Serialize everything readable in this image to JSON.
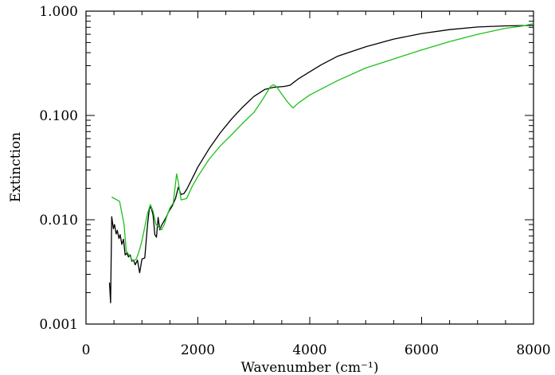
{
  "chart_data": {
    "type": "line",
    "title": "",
    "xlabel": "Wavenumber (cm⁻¹)",
    "ylabel": "Extinction",
    "xlim": [
      0,
      8000
    ],
    "ylim": [
      0.001,
      1.0
    ],
    "yscale": "log",
    "grid": false,
    "x_ticks": [
      0,
      2000,
      4000,
      6000,
      8000
    ],
    "x_tick_labels": [
      "0",
      "2000",
      "4000",
      "6000",
      "8000"
    ],
    "y_ticks": [
      0.001,
      0.01,
      0.1,
      1.0
    ],
    "y_tick_labels": [
      "0.001",
      "0.010",
      "0.100",
      "1.000"
    ],
    "series": [
      {
        "color": "#000000",
        "x": [
          420,
          440,
          460,
          490,
          510,
          540,
          560,
          590,
          610,
          640,
          670,
          700,
          730,
          760,
          790,
          820,
          850,
          880,
          920,
          960,
          1000,
          1050,
          1100,
          1130,
          1160,
          1200,
          1230,
          1260,
          1290,
          1320,
          1350,
          1390,
          1430,
          1480,
          1540,
          1600,
          1650,
          1700,
          1750,
          1800,
          1900,
          2000,
          2200,
          2400,
          2600,
          2800,
          3000,
          3200,
          3350,
          3450,
          3550,
          3650,
          3700,
          3800,
          4000,
          4200,
          4500,
          5000,
          5500,
          6000,
          6500,
          7000,
          7500,
          8000
        ],
        "y": [
          0.0025,
          0.0016,
          0.0107,
          0.0082,
          0.009,
          0.0073,
          0.0079,
          0.0066,
          0.0072,
          0.0058,
          0.0065,
          0.0046,
          0.0048,
          0.0044,
          0.0046,
          0.004,
          0.0041,
          0.0037,
          0.0041,
          0.0031,
          0.0042,
          0.0043,
          0.009,
          0.0125,
          0.0135,
          0.011,
          0.0072,
          0.0068,
          0.0105,
          0.008,
          0.0088,
          0.0096,
          0.0105,
          0.012,
          0.0135,
          0.016,
          0.0205,
          0.0175,
          0.0178,
          0.0195,
          0.025,
          0.032,
          0.048,
          0.068,
          0.092,
          0.12,
          0.152,
          0.178,
          0.186,
          0.188,
          0.19,
          0.195,
          0.205,
          0.225,
          0.262,
          0.305,
          0.37,
          0.455,
          0.54,
          0.61,
          0.665,
          0.705,
          0.722,
          0.73
        ]
      },
      {
        "color": "#1fbf1f",
        "x": [
          460,
          600,
          680,
          720,
          780,
          840,
          900,
          960,
          1000,
          1050,
          1100,
          1150,
          1200,
          1250,
          1300,
          1350,
          1400,
          1450,
          1500,
          1560,
          1620,
          1650,
          1700,
          1800,
          1900,
          2000,
          2200,
          2400,
          2600,
          2800,
          3000,
          3100,
          3200,
          3300,
          3350,
          3400,
          3500,
          3600,
          3700,
          3800,
          4000,
          4500,
          5000,
          5500,
          6000,
          6500,
          7000,
          7500,
          7800,
          8000
        ],
        "y": [
          0.0165,
          0.015,
          0.009,
          0.005,
          0.0045,
          0.004,
          0.0042,
          0.0052,
          0.0063,
          0.0085,
          0.0115,
          0.014,
          0.012,
          0.009,
          0.0085,
          0.008,
          0.009,
          0.011,
          0.013,
          0.0145,
          0.0275,
          0.023,
          0.0155,
          0.016,
          0.021,
          0.026,
          0.038,
          0.051,
          0.065,
          0.084,
          0.107,
          0.128,
          0.155,
          0.19,
          0.197,
          0.19,
          0.16,
          0.135,
          0.118,
          0.132,
          0.157,
          0.216,
          0.285,
          0.348,
          0.425,
          0.51,
          0.6,
          0.685,
          0.72,
          0.76
        ]
      }
    ]
  }
}
